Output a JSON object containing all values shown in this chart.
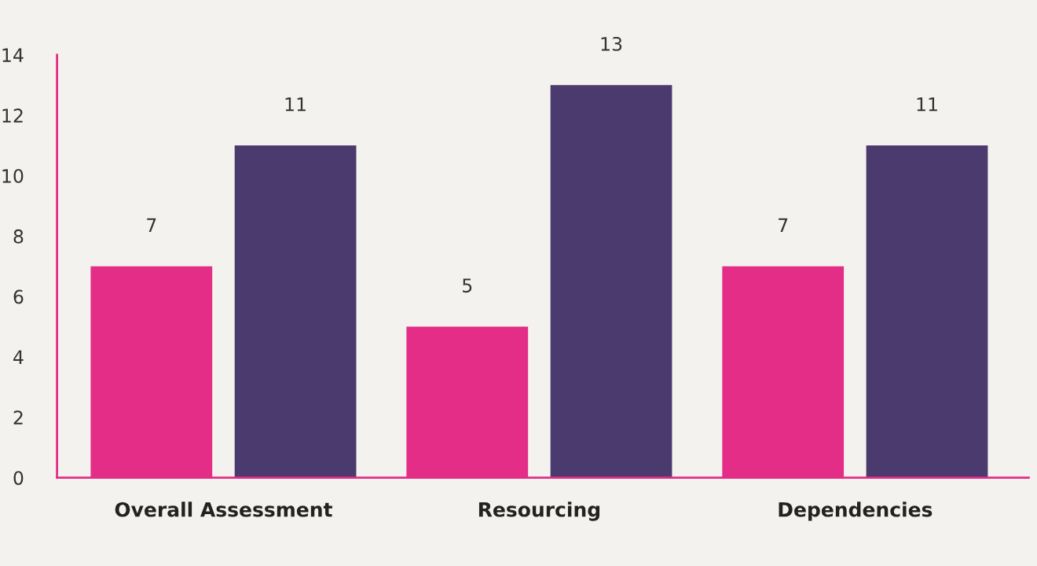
{
  "chart_data": {
    "type": "bar",
    "categories": [
      "Overall Assessment",
      "Resourcing",
      "Dependencies"
    ],
    "series": [
      {
        "color": "#e32d87",
        "values": [
          7,
          5,
          7
        ]
      },
      {
        "color": "#4b3a6e",
        "values": [
          11,
          13,
          11
        ]
      }
    ],
    "ylim": [
      0,
      14
    ],
    "yticks": [
      0,
      2,
      4,
      6,
      8,
      10,
      12,
      14
    ],
    "data_labels": true,
    "grid": false,
    "legend": false
  }
}
